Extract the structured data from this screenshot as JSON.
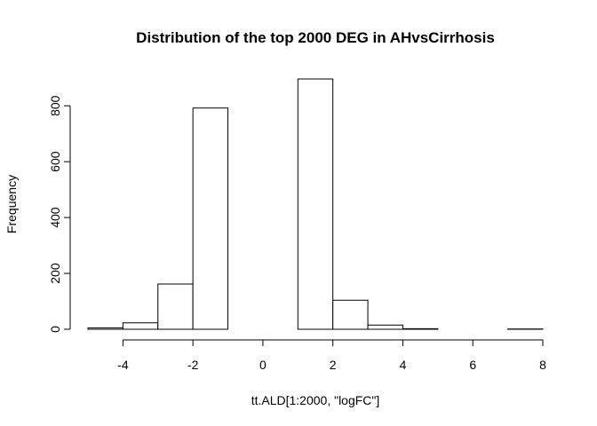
{
  "chart_data": {
    "type": "bar",
    "title": "Distribution of the top 2000 DEG in AHvsCirrhosis",
    "xlabel": "tt.ALD[1:2000, \"logFC\"]",
    "ylabel": "Frequency",
    "bins": [
      {
        "from": -5,
        "to": -4,
        "count": 5
      },
      {
        "from": -4,
        "to": -3,
        "count": 23
      },
      {
        "from": -3,
        "to": -2,
        "count": 162
      },
      {
        "from": -2,
        "to": -1,
        "count": 792
      },
      {
        "from": -1,
        "to": 0,
        "count": 0
      },
      {
        "from": 0,
        "to": 1,
        "count": 0
      },
      {
        "from": 1,
        "to": 2,
        "count": 896
      },
      {
        "from": 2,
        "to": 3,
        "count": 104
      },
      {
        "from": 3,
        "to": 4,
        "count": 15
      },
      {
        "from": 4,
        "to": 5,
        "count": 2
      },
      {
        "from": 5,
        "to": 6,
        "count": 0
      },
      {
        "from": 6,
        "to": 7,
        "count": 0
      },
      {
        "from": 7,
        "to": 8,
        "count": 1
      }
    ],
    "xlim": [
      -5,
      8
    ],
    "ylim": [
      0,
      896
    ],
    "x_ticks": [
      -4,
      -2,
      0,
      2,
      4,
      6,
      8
    ],
    "x_tick_labels": [
      "-4",
      "-2",
      "0",
      "2",
      "4",
      "6",
      "8"
    ],
    "y_ticks": [
      0,
      200,
      400,
      600,
      800
    ],
    "y_tick_labels": [
      "0",
      "200",
      "400",
      "600",
      "800"
    ],
    "grid": false,
    "legend": "none"
  }
}
